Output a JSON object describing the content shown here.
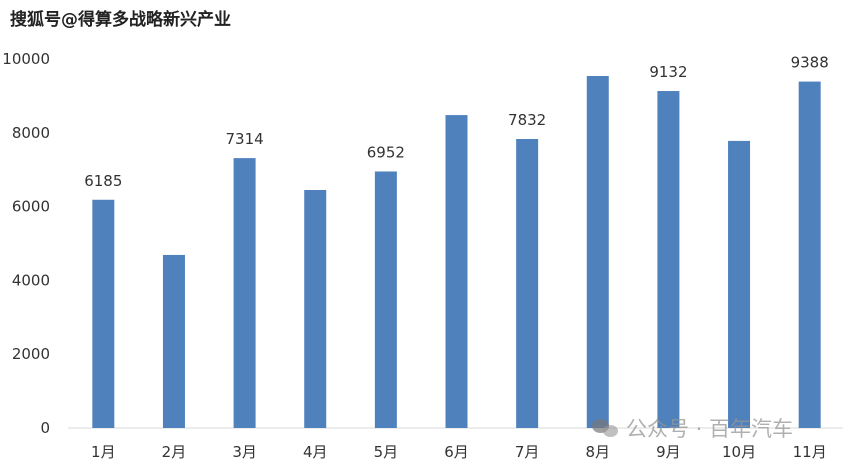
{
  "watermarks": {
    "top": "搜狐号@得算多战略新兴产业",
    "bottom": "公众号 · 百年汽车",
    "bottom_icon": "wechat-icon"
  },
  "chart_data": {
    "type": "bar",
    "title": "",
    "xlabel": "",
    "ylabel": "",
    "categories": [
      "1月",
      "2月",
      "3月",
      "4月",
      "5月",
      "6月",
      "7月",
      "8月",
      "9月",
      "10月",
      "11月"
    ],
    "values": [
      6185,
      4690,
      7314,
      6450,
      6952,
      8480,
      7832,
      9540,
      9132,
      7780,
      9388
    ],
    "data_labels": [
      "6185",
      null,
      "7314",
      null,
      "6952",
      null,
      "7832",
      null,
      "9132",
      null,
      "9388"
    ],
    "ylim": [
      0,
      10000
    ],
    "yticks": [
      "0",
      "2000",
      "4000",
      "6000",
      "8000",
      "10000"
    ],
    "grid": false,
    "legend": "none",
    "bar_color": "#4f81bd"
  }
}
